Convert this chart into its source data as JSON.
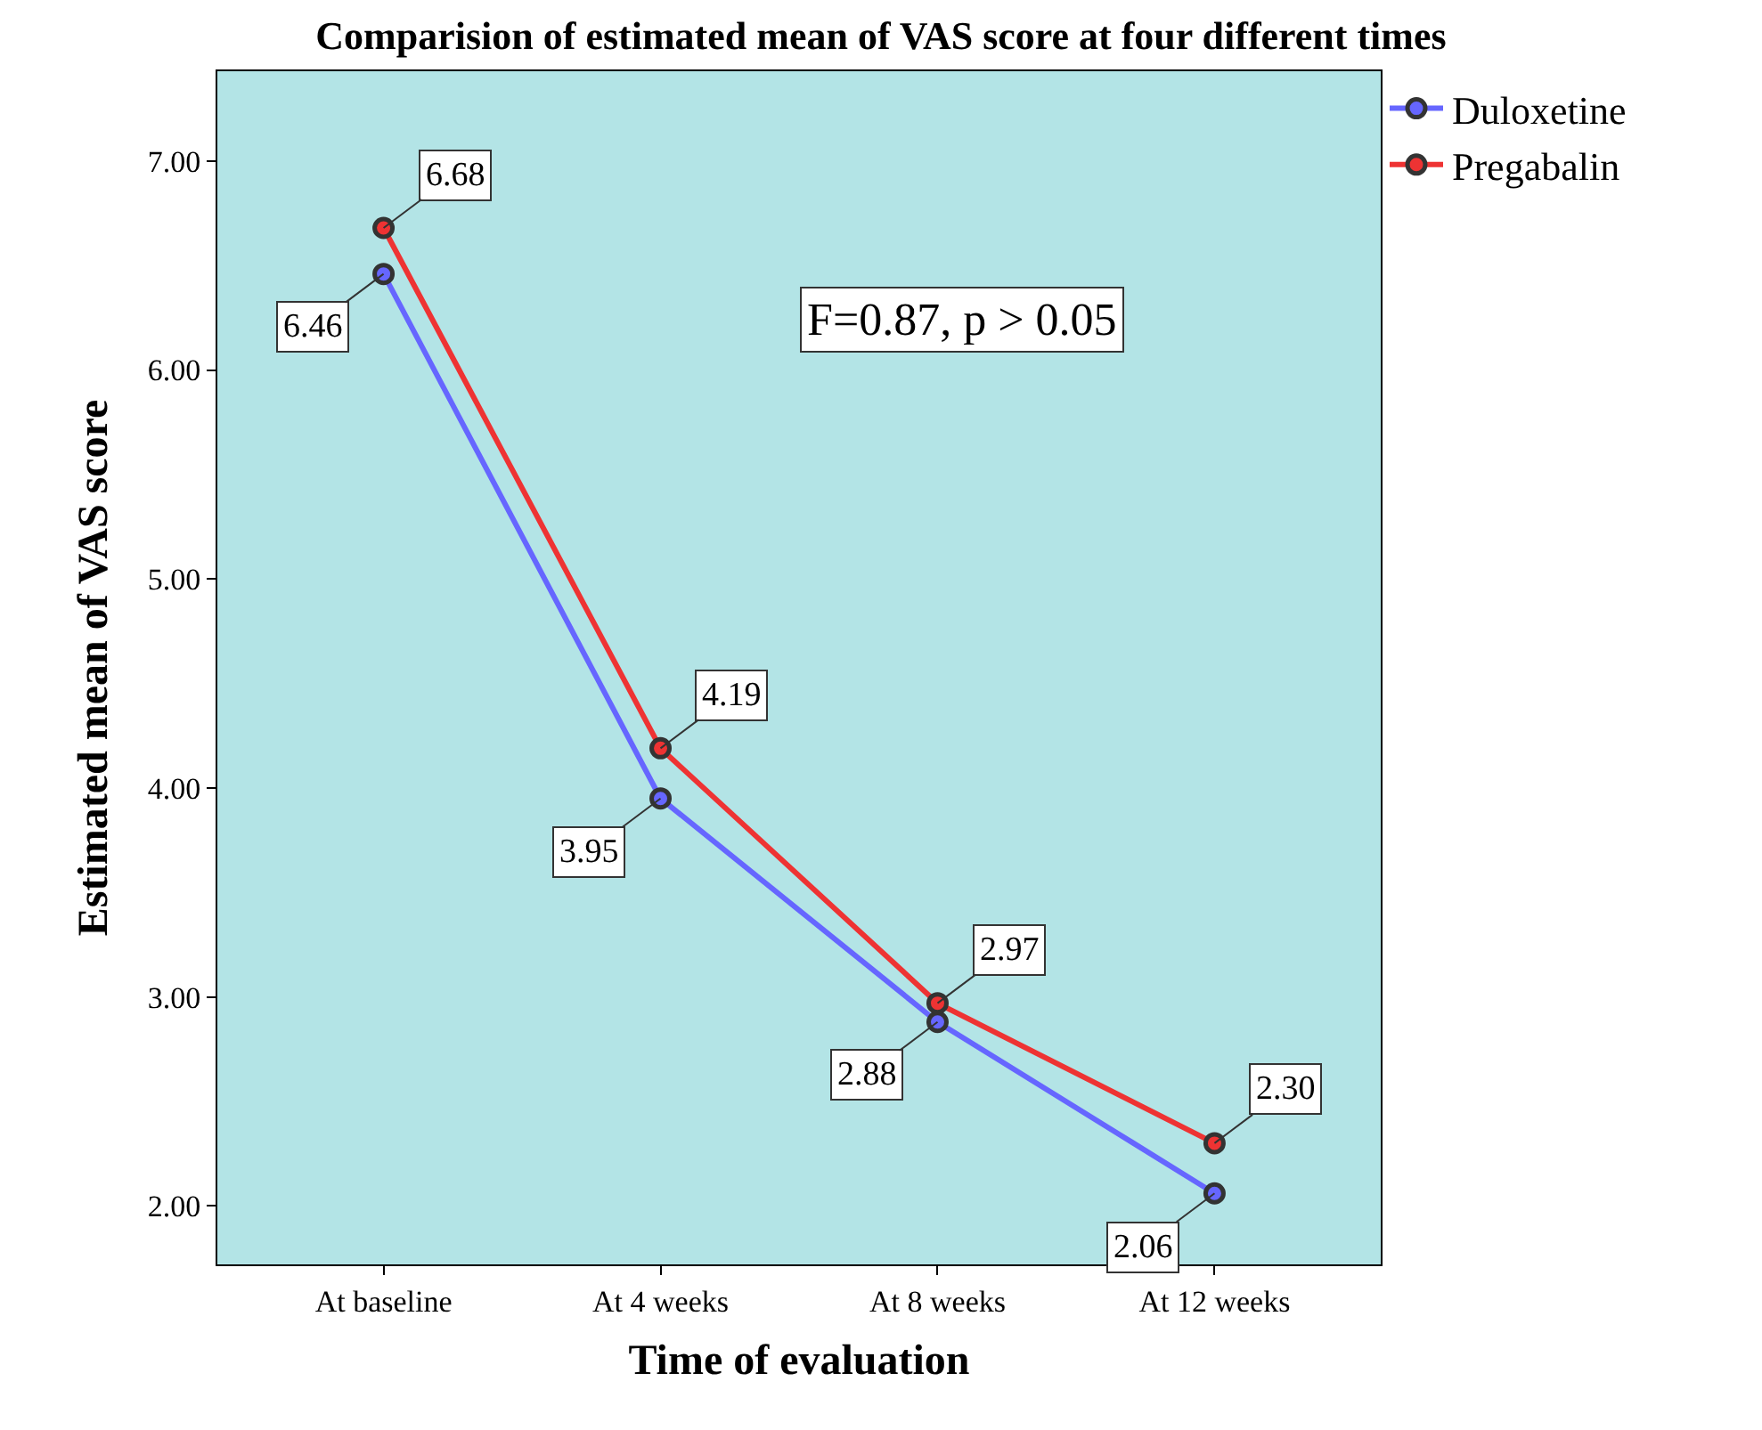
{
  "chart_data": {
    "type": "line",
    "title": "Comparision of estimated mean of VAS score at four different times",
    "xlabel": "Time of evaluation",
    "ylabel": "Estimated mean of VAS score",
    "categories": [
      "At baseline",
      "At 4 weeks",
      "At 8 weeks",
      "At 12 weeks"
    ],
    "series": [
      {
        "name": "Duloxetine",
        "color": "#6666ff",
        "values": [
          6.46,
          3.95,
          2.88,
          2.06
        ],
        "value_labels": [
          "6.46",
          "3.95",
          "2.88",
          "2.06"
        ]
      },
      {
        "name": "Pregabalin",
        "color": "#ee3333",
        "values": [
          6.68,
          4.19,
          2.97,
          2.3
        ],
        "value_labels": [
          "6.68",
          "4.19",
          "2.97",
          "2.30"
        ]
      }
    ],
    "ylim": [
      1.72,
      7.43
    ],
    "yticks": [
      {
        "value": 2,
        "label": "2.00"
      },
      {
        "value": 3,
        "label": "3.00"
      },
      {
        "value": 4,
        "label": "4.00"
      },
      {
        "value": 5,
        "label": "5.00"
      },
      {
        "value": 6,
        "label": "6.00"
      },
      {
        "value": 7,
        "label": "7.00"
      }
    ],
    "annotations": [
      "F=0.87, p > 0.05"
    ],
    "grid": false,
    "legend": "top right",
    "marker": "circle",
    "line_style": "solid"
  }
}
